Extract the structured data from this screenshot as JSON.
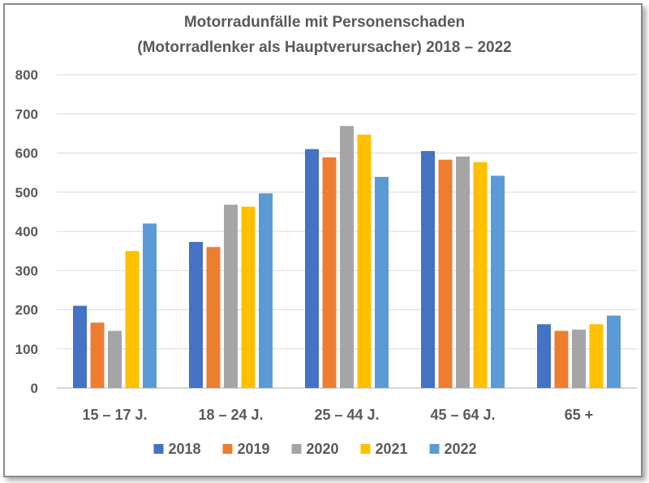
{
  "chart_data": {
    "type": "bar",
    "title": [
      "Motorradunfälle mit Personenschaden",
      "(Motorradlenker als Hauptverursacher) 2018 – 2022"
    ],
    "categories": [
      "15 – 17 J.",
      "18 – 24 J.",
      "25 – 44 J.",
      "45 – 64 J.",
      "65 +"
    ],
    "series": [
      {
        "name": "2018",
        "color": "#4472C4",
        "values": [
          210,
          373,
          610,
          605,
          163
        ]
      },
      {
        "name": "2019",
        "color": "#ED7D31",
        "values": [
          167,
          360,
          589,
          583,
          146
        ]
      },
      {
        "name": "2020",
        "color": "#A5A5A5",
        "values": [
          146,
          468,
          669,
          591,
          149
        ]
      },
      {
        "name": "2021",
        "color": "#FFC000",
        "values": [
          350,
          463,
          647,
          577,
          163
        ]
      },
      {
        "name": "2022",
        "color": "#5B9BD5",
        "values": [
          420,
          497,
          539,
          542,
          185
        ]
      }
    ],
    "yticks": [
      "0",
      "100",
      "200",
      "300",
      "400",
      "500",
      "600",
      "700",
      "800"
    ],
    "ylim": [
      0,
      800
    ],
    "grid": true,
    "legend": "bottom",
    "xlabel": "",
    "ylabel": ""
  }
}
